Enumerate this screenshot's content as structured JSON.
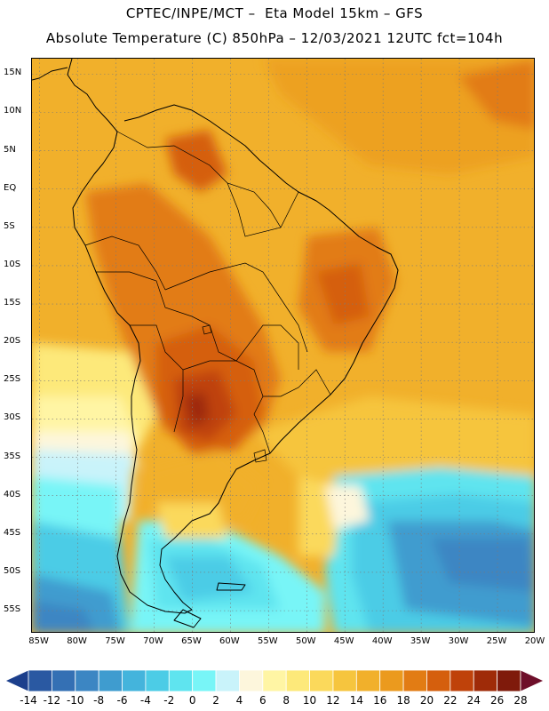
{
  "header": {
    "line1": "CPTEC/INPE/MCT –  Eta Model 15km – GFS",
    "line2": "Absolute Temperature (C) 850hPa – 12/03/2021 12UTC fct=104h"
  },
  "map": {
    "lon_range": [
      -86,
      -20
    ],
    "lat_range": [
      -58,
      17
    ],
    "lat_labels": [
      "15N",
      "10N",
      "5N",
      "EQ",
      "5S",
      "10S",
      "15S",
      "20S",
      "25S",
      "30S",
      "35S",
      "40S",
      "45S",
      "50S",
      "55S"
    ],
    "lat_values": [
      15,
      10,
      5,
      0,
      -5,
      -10,
      -15,
      -20,
      -25,
      -30,
      -35,
      -40,
      -45,
      -50,
      -55
    ],
    "lon_labels": [
      "85W",
      "80W",
      "75W",
      "70W",
      "65W",
      "60W",
      "55W",
      "50W",
      "45W",
      "40W",
      "35W",
      "30W",
      "25W",
      "20W"
    ],
    "lon_values": [
      -85,
      -80,
      -75,
      -70,
      -65,
      -60,
      -55,
      -50,
      -45,
      -40,
      -35,
      -30,
      -25,
      -20
    ],
    "grid": "dotted, every 5 degrees"
  },
  "colorbar": {
    "labels": [
      "-14",
      "-12",
      "-10",
      "-8",
      "-6",
      "-4",
      "-2",
      "0",
      "2",
      "4",
      "6",
      "8",
      "10",
      "12",
      "14",
      "16",
      "18",
      "20",
      "22",
      "24",
      "26",
      "28"
    ],
    "colors": [
      "#1c3f8c",
      "#2a59a2",
      "#3470b4",
      "#3c86c3",
      "#3f9ccf",
      "#44b4dc",
      "#4ccce6",
      "#5fe4ef",
      "#78f5f7",
      "#c9f3fa",
      "#fdf6dc",
      "#fff5a4",
      "#fde97a",
      "#fbd95b",
      "#f6c53e",
      "#f1b02b",
      "#eb9a1e",
      "#e27c14",
      "#d55f0d",
      "#bf420a",
      "#9f2b08",
      "#7f1a0b",
      "#6e0f2a"
    ]
  }
}
